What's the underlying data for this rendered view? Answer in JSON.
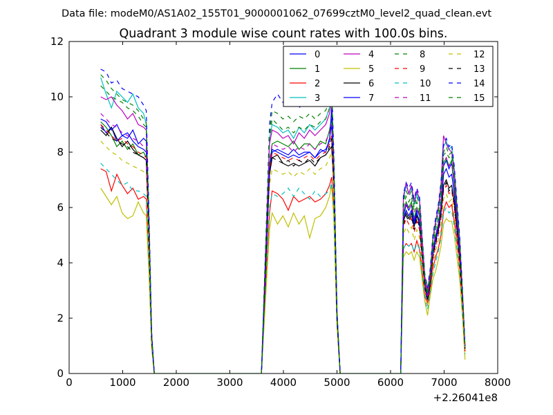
{
  "chart_data": {
    "type": "line",
    "suptitle": "Data file: modeM0/AS1A02_155T01_9000001062_07699cztM0_level2_quad_clean.evt",
    "title": "Quadrant 3 module wise count rates with 100.0s bins.",
    "xlabel": "",
    "ylabel": "",
    "xlim": [
      0,
      8000
    ],
    "ylim": [
      0,
      12
    ],
    "x_offset_label": "+2.26041e8",
    "xticks": [
      0,
      1000,
      2000,
      3000,
      4000,
      5000,
      6000,
      7000,
      8000
    ],
    "yticks": [
      0,
      2,
      4,
      6,
      8,
      10,
      12
    ],
    "legend_placement": "upper right, 4 columns",
    "grid": false,
    "segments": [
      {
        "x": [
          590,
          690,
          790,
          890,
          990,
          1090,
          1190,
          1290,
          1390,
          1440,
          1490,
          1540,
          1590
        ]
      },
      {
        "x": [
          3590,
          3690,
          3740,
          3790,
          3890,
          3990,
          4090,
          4190,
          4290,
          4390,
          4490,
          4590,
          4690,
          4790,
          4860,
          4900,
          4940,
          5000,
          5060
        ]
      },
      {
        "x": [
          6190,
          6240,
          6290,
          6340,
          6390,
          6440,
          6490,
          6540,
          6590,
          6640,
          6690,
          6740,
          6790,
          6840,
          6890,
          6940,
          6990,
          7040,
          7090,
          7140,
          7190,
          7240,
          7290,
          7340,
          7390
        ]
      }
    ],
    "flat_ranges": [
      [
        1590,
        3590
      ],
      [
        5060,
        6190
      ]
    ],
    "series": [
      {
        "name": "0",
        "color": "#0000ff",
        "dash": "solid",
        "s1": [
          9.0,
          8.7,
          8.9,
          8.4,
          8.6,
          8.5,
          8.8,
          8.3,
          8.5,
          8.4,
          5.0,
          1.2,
          0
        ],
        "s2": [
          0,
          5.0,
          7.2,
          8.0,
          8.1,
          8.0,
          7.9,
          8.1,
          7.9,
          8.0,
          8.0,
          7.8,
          8.1,
          8.0,
          8.5,
          9.0,
          7.0,
          2.0,
          0
        ],
        "s3": [
          0,
          5.7,
          6.1,
          5.9,
          6.1,
          5.5,
          5.9,
          5.7,
          4.4,
          3.2,
          2.8,
          3.4,
          4.4,
          4.9,
          5.3,
          6.0,
          7.5,
          7.7,
          7.4,
          7.6,
          6.8,
          5.6,
          4.5,
          2.8,
          1.0
        ]
      },
      {
        "name": "1",
        "color": "#008000",
        "dash": "solid",
        "s1": [
          9.1,
          8.9,
          8.6,
          8.2,
          8.4,
          8.1,
          8.3,
          7.9,
          8.0,
          7.8,
          4.8,
          1.2,
          0
        ],
        "s2": [
          0,
          5.0,
          7.5,
          8.3,
          8.4,
          8.3,
          8.2,
          8.4,
          8.1,
          8.3,
          8.3,
          8.1,
          8.4,
          8.3,
          8.8,
          9.2,
          7.1,
          2.0,
          0
        ],
        "s3": [
          0,
          5.8,
          6.2,
          6.0,
          6.2,
          5.6,
          6.0,
          5.8,
          4.5,
          3.3,
          2.9,
          3.5,
          4.5,
          5.0,
          5.4,
          6.1,
          7.6,
          7.8,
          7.5,
          7.7,
          6.9,
          5.7,
          4.6,
          2.9,
          1.0
        ]
      },
      {
        "name": "2",
        "color": "#ff0000",
        "dash": "solid",
        "s1": [
          7.4,
          7.3,
          6.6,
          7.2,
          6.8,
          6.5,
          6.7,
          6.3,
          6.4,
          6.3,
          4.0,
          1.0,
          0
        ],
        "s2": [
          0,
          4.0,
          5.8,
          6.6,
          6.5,
          6.3,
          5.9,
          6.4,
          6.2,
          6.3,
          6.4,
          6.2,
          6.3,
          6.5,
          6.8,
          7.1,
          6.0,
          1.8,
          0
        ],
        "s3": [
          0,
          4.5,
          4.7,
          4.6,
          4.7,
          4.4,
          4.8,
          4.5,
          3.7,
          2.8,
          2.5,
          3.0,
          3.8,
          4.2,
          4.5,
          5.0,
          5.9,
          6.2,
          6.0,
          6.1,
          5.5,
          4.7,
          3.8,
          2.4,
          0.8
        ]
      },
      {
        "name": "3",
        "color": "#00bfbf",
        "dash": "solid",
        "s1": [
          10.7,
          10.1,
          9.6,
          10.2,
          10.0,
          9.8,
          10.1,
          9.6,
          9.4,
          9.0,
          5.5,
          1.4,
          0
        ],
        "s2": [
          0,
          5.8,
          8.5,
          9.0,
          8.9,
          8.7,
          8.8,
          8.5,
          8.9,
          8.7,
          9.0,
          8.8,
          9.0,
          9.2,
          9.6,
          10.2,
          7.6,
          2.2,
          0
        ],
        "s3": [
          0,
          6.3,
          6.8,
          6.5,
          6.7,
          6.1,
          6.5,
          6.2,
          4.8,
          3.5,
          3.0,
          3.6,
          4.8,
          5.4,
          5.9,
          6.7,
          8.2,
          8.4,
          8.1,
          8.2,
          7.4,
          6.1,
          4.9,
          3.0,
          1.0
        ]
      },
      {
        "name": "4",
        "color": "#bf00bf",
        "dash": "solid",
        "s1": [
          10.0,
          9.9,
          10.0,
          9.7,
          9.5,
          9.2,
          9.4,
          9.0,
          8.9,
          8.8,
          5.4,
          1.4,
          0
        ],
        "s2": [
          0,
          5.6,
          8.3,
          8.8,
          8.7,
          8.5,
          8.6,
          8.3,
          8.7,
          8.5,
          8.8,
          8.6,
          8.8,
          9.0,
          9.4,
          9.8,
          7.5,
          2.2,
          0
        ],
        "s3": [
          0,
          6.4,
          6.9,
          6.5,
          6.8,
          6.2,
          6.6,
          6.3,
          4.9,
          3.5,
          3.0,
          3.7,
          4.9,
          5.5,
          6.0,
          6.8,
          8.6,
          8.3,
          8.1,
          8.0,
          7.3,
          6.0,
          4.8,
          3.0,
          1.0
        ]
      },
      {
        "name": "5",
        "color": "#bfbf00",
        "dash": "solid",
        "s1": [
          6.7,
          6.4,
          6.1,
          6.4,
          5.8,
          5.6,
          5.7,
          6.2,
          5.8,
          5.7,
          3.6,
          0.9,
          0
        ],
        "s2": [
          0,
          3.5,
          5.2,
          5.8,
          5.4,
          5.7,
          5.3,
          5.8,
          5.4,
          5.7,
          4.9,
          5.6,
          5.7,
          6.0,
          6.4,
          6.8,
          5.6,
          1.7,
          0
        ],
        "s3": [
          0,
          4.2,
          4.4,
          4.3,
          4.4,
          4.1,
          4.4,
          4.2,
          3.4,
          2.6,
          2.1,
          2.8,
          3.4,
          3.7,
          4.1,
          4.6,
          5.4,
          5.6,
          5.5,
          5.5,
          5.0,
          4.2,
          3.4,
          2.1,
          0.5
        ]
      },
      {
        "name": "6",
        "color": "#000000",
        "dash": "solid",
        "s1": [
          8.8,
          8.6,
          8.9,
          8.5,
          8.2,
          8.4,
          8.1,
          7.9,
          7.8,
          7.7,
          4.7,
          1.2,
          0
        ],
        "s2": [
          0,
          4.9,
          7.2,
          7.8,
          7.9,
          7.6,
          7.5,
          7.6,
          7.5,
          7.6,
          7.7,
          7.5,
          7.8,
          7.9,
          8.1,
          8.2,
          6.8,
          2.0,
          0
        ],
        "s3": [
          0,
          5.5,
          5.8,
          5.6,
          5.8,
          5.3,
          5.7,
          5.4,
          4.3,
          3.1,
          2.7,
          3.2,
          4.3,
          4.8,
          5.2,
          5.8,
          6.8,
          7.0,
          6.7,
          6.8,
          6.2,
          5.2,
          4.2,
          2.7,
          0.9
        ]
      },
      {
        "name": "7",
        "color": "#0000ff",
        "dash": "solid",
        "s1": [
          9.2,
          9.1,
          8.8,
          9.0,
          8.6,
          8.7,
          8.4,
          8.2,
          8.1,
          8.0,
          4.9,
          1.2,
          0
        ],
        "s2": [
          0,
          5.0,
          7.4,
          8.1,
          8.0,
          7.9,
          7.8,
          7.9,
          7.8,
          7.9,
          8.0,
          7.8,
          8.0,
          8.1,
          8.4,
          9.6,
          7.0,
          2.0,
          0
        ],
        "s3": [
          0,
          5.6,
          5.9,
          5.7,
          5.9,
          5.4,
          5.8,
          5.5,
          4.3,
          3.2,
          2.7,
          3.3,
          4.3,
          4.8,
          5.2,
          5.8,
          7.2,
          7.4,
          7.1,
          7.2,
          6.5,
          5.4,
          4.3,
          2.7,
          0.9
        ]
      },
      {
        "name": "8",
        "color": "#008000",
        "dash": "dashed",
        "s1": [
          10.4,
          10.2,
          10.0,
          9.9,
          9.8,
          9.6,
          9.5,
          9.3,
          9.0,
          8.9,
          5.4,
          1.4,
          0
        ],
        "s2": [
          0,
          5.7,
          8.5,
          9.2,
          9.0,
          8.8,
          8.9,
          8.7,
          8.9,
          8.8,
          9.0,
          8.9,
          9.1,
          9.2,
          9.6,
          10.0,
          7.6,
          2.2,
          0
        ],
        "s3": [
          0,
          6.0,
          6.4,
          6.2,
          6.4,
          5.8,
          6.2,
          5.9,
          4.6,
          3.4,
          2.9,
          3.5,
          4.6,
          5.2,
          5.6,
          6.4,
          7.9,
          8.0,
          7.8,
          7.9,
          7.1,
          5.9,
          4.7,
          2.9,
          1.0
        ]
      },
      {
        "name": "9",
        "color": "#ff0000",
        "dash": "dashed",
        "s1": [
          9.0,
          8.8,
          8.6,
          8.4,
          8.5,
          8.3,
          8.2,
          8.0,
          7.9,
          7.8,
          4.8,
          1.2,
          0
        ],
        "s2": [
          0,
          5.0,
          7.3,
          8.0,
          7.9,
          7.8,
          7.7,
          7.8,
          7.7,
          7.8,
          7.9,
          7.7,
          7.9,
          8.0,
          8.3,
          8.6,
          6.9,
          2.0,
          0
        ],
        "s3": [
          0,
          5.3,
          5.6,
          5.4,
          5.6,
          5.1,
          5.5,
          5.2,
          4.1,
          3.0,
          2.6,
          3.1,
          4.1,
          4.6,
          5.0,
          5.6,
          6.6,
          6.8,
          6.5,
          6.6,
          6.0,
          5.0,
          4.0,
          2.6,
          0.8
        ]
      },
      {
        "name": "10",
        "color": "#00bfbf",
        "dash": "dashed",
        "s1": [
          7.6,
          7.4,
          7.2,
          7.0,
          6.8,
          6.9,
          6.6,
          6.6,
          6.5,
          6.4,
          4.0,
          1.0,
          0
        ],
        "s2": [
          0,
          4.1,
          6.0,
          6.5,
          6.4,
          6.5,
          6.7,
          6.4,
          6.7,
          6.5,
          6.3,
          6.6,
          6.4,
          6.5,
          6.6,
          6.9,
          5.8,
          1.8,
          0
        ],
        "s3": [
          0,
          4.5,
          4.7,
          4.6,
          4.7,
          4.4,
          4.7,
          4.5,
          3.6,
          2.7,
          2.3,
          2.9,
          3.6,
          4.0,
          4.4,
          4.9,
          5.8,
          6.0,
          5.8,
          5.9,
          5.3,
          4.5,
          3.6,
          2.3,
          0.7
        ]
      },
      {
        "name": "11",
        "color": "#bf00bf",
        "dash": "dashed",
        "s1": [
          9.4,
          9.2,
          9.0,
          8.9,
          8.7,
          8.6,
          8.5,
          8.4,
          8.2,
          8.1,
          5.0,
          1.3,
          0
        ],
        "s2": [
          0,
          5.2,
          7.7,
          8.3,
          8.2,
          8.1,
          8.2,
          8.0,
          8.2,
          8.1,
          8.3,
          8.1,
          8.3,
          8.4,
          8.7,
          9.0,
          7.1,
          2.1,
          0
        ],
        "s3": [
          0,
          5.8,
          6.2,
          5.9,
          6.1,
          5.6,
          6.0,
          5.7,
          4.5,
          3.3,
          2.8,
          3.4,
          4.5,
          5.0,
          5.4,
          6.1,
          7.6,
          7.8,
          7.5,
          7.6,
          6.9,
          5.7,
          4.6,
          2.8,
          0.9
        ]
      },
      {
        "name": "12",
        "color": "#bfbf00",
        "dash": "dashed",
        "s1": [
          8.4,
          8.2,
          8.0,
          7.9,
          7.7,
          7.6,
          7.5,
          7.4,
          7.3,
          7.2,
          4.5,
          1.1,
          0
        ],
        "s2": [
          0,
          4.6,
          6.8,
          7.4,
          7.3,
          7.2,
          7.3,
          7.1,
          7.3,
          7.2,
          7.4,
          7.2,
          7.4,
          7.5,
          7.8,
          8.0,
          6.5,
          1.9,
          0
        ],
        "s3": [
          0,
          5.0,
          5.3,
          5.1,
          5.3,
          4.8,
          5.2,
          4.9,
          3.9,
          2.9,
          2.5,
          3.0,
          3.9,
          4.4,
          4.8,
          5.3,
          6.3,
          6.5,
          6.2,
          6.3,
          5.7,
          4.8,
          3.8,
          2.5,
          0.8
        ]
      },
      {
        "name": "13",
        "color": "#000000",
        "dash": "dashed",
        "s1": [
          8.9,
          8.7,
          8.5,
          8.4,
          8.3,
          8.2,
          8.0,
          7.9,
          7.8,
          7.7,
          4.8,
          1.2,
          0
        ],
        "s2": [
          0,
          4.9,
          7.2,
          7.8,
          7.7,
          7.6,
          7.7,
          7.5,
          7.7,
          7.6,
          7.8,
          7.6,
          7.8,
          7.9,
          8.2,
          8.5,
          6.8,
          2.0,
          0
        ],
        "s3": [
          0,
          5.4,
          5.7,
          5.5,
          5.7,
          5.2,
          5.6,
          5.3,
          4.2,
          3.1,
          2.6,
          3.2,
          4.2,
          4.7,
          5.1,
          5.7,
          6.7,
          6.9,
          6.6,
          6.7,
          6.1,
          5.1,
          4.1,
          2.6,
          0.9
        ]
      },
      {
        "name": "14",
        "color": "#0000ff",
        "dash": "dashed",
        "s1": [
          11.0,
          10.9,
          10.5,
          10.6,
          10.3,
          10.2,
          10.1,
          10.0,
          9.7,
          9.5,
          5.8,
          1.5,
          0
        ],
        "s2": [
          0,
          6.0,
          9.0,
          9.8,
          10.1,
          9.8,
          9.7,
          9.9,
          9.6,
          9.8,
          9.9,
          9.7,
          9.9,
          10.0,
          10.3,
          10.5,
          8.0,
          2.3,
          0
        ],
        "s3": [
          0,
          6.5,
          6.9,
          6.7,
          6.9,
          6.3,
          6.7,
          6.4,
          5.0,
          3.6,
          3.1,
          3.8,
          5.0,
          5.6,
          6.1,
          6.9,
          8.3,
          8.5,
          8.2,
          8.3,
          7.5,
          6.2,
          5.0,
          3.1,
          1.0
        ]
      },
      {
        "name": "15",
        "color": "#008000",
        "dash": "dashed",
        "s1": [
          10.8,
          10.6,
          10.3,
          10.1,
          9.9,
          9.8,
          9.7,
          9.5,
          9.2,
          9.1,
          5.6,
          1.4,
          0
        ],
        "s2": [
          0,
          5.8,
          8.7,
          9.5,
          9.4,
          9.2,
          9.3,
          9.1,
          9.3,
          9.2,
          9.4,
          9.2,
          9.4,
          9.5,
          9.9,
          10.3,
          7.8,
          2.2,
          0
        ],
        "s3": [
          0,
          6.2,
          6.6,
          6.4,
          6.6,
          6.0,
          6.4,
          6.1,
          4.8,
          3.5,
          3.0,
          3.6,
          4.8,
          5.3,
          5.8,
          6.5,
          8.0,
          8.2,
          7.9,
          8.0,
          7.2,
          6.0,
          4.8,
          3.0,
          1.0
        ]
      }
    ]
  }
}
